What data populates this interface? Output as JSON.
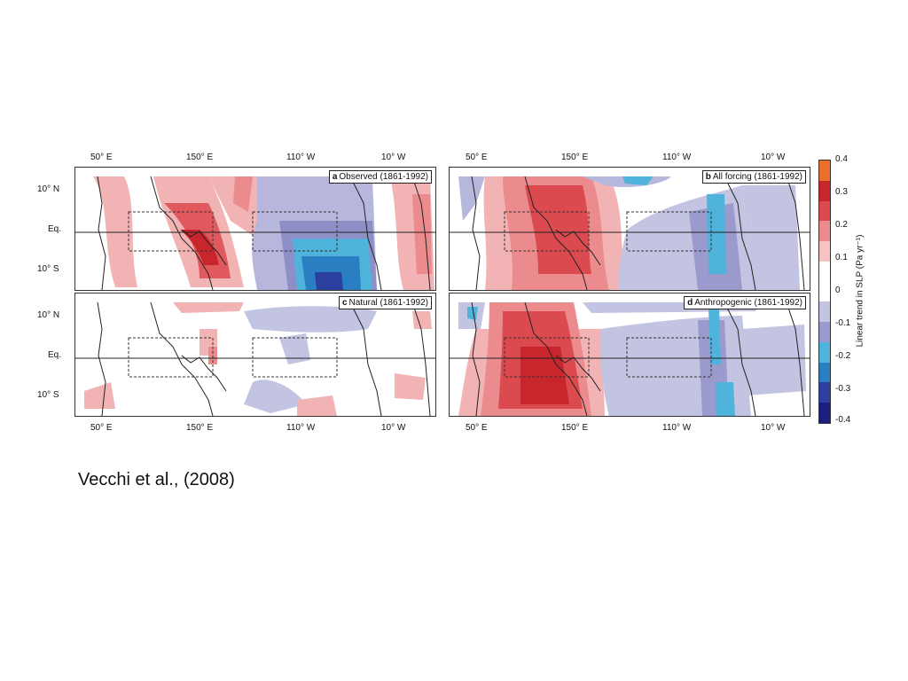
{
  "figure": {
    "lon_labels": [
      "50° E",
      "150° E",
      "110° W",
      "10° W"
    ],
    "lat_labels": [
      "10° N",
      "Eq.",
      "10° S"
    ],
    "panels": [
      {
        "letter": "a",
        "title": "Observed (1861-1992)"
      },
      {
        "letter": "b",
        "title": "All forcing (1861-1992)"
      },
      {
        "letter": "c",
        "title": "Natural (1861-1992)"
      },
      {
        "letter": "d",
        "title": "Anthropogenic (1861-1992)"
      }
    ],
    "colorbar": {
      "label": "Linear trend in SLP (Pa yr⁻¹)",
      "ticks": [
        "0.4",
        "0.3",
        "0.2",
        "0.1",
        "0",
        "-0.1",
        "-0.2",
        "-0.3",
        "-0.4"
      ],
      "colors": [
        "#e8702a",
        "#c9252c",
        "#db4a4f",
        "#ec8b8d",
        "#f5c3c3",
        "#ffffff",
        "#ffffff",
        "#c3c3e2",
        "#9a9acc",
        "#4fb3dc",
        "#2a7fc2",
        "#2c3f9e",
        "#1e1e80"
      ]
    }
  },
  "caption": "Vecchi et al., (2008)"
}
